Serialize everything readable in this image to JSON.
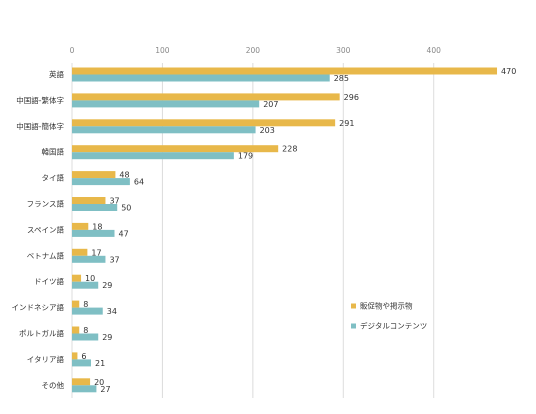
{
  "chart_data": {
    "type": "bar",
    "orientation": "horizontal",
    "categories": [
      "英語",
      "中国語-繁体字",
      "中国語-簡体字",
      "韓国語",
      "タイ語",
      "フランス語",
      "スペイン語",
      "ベトナム語",
      "ドイツ語",
      "インドネシア語",
      "ポルトガル語",
      "イタリア語",
      "その他"
    ],
    "series": [
      {
        "name": "販促物や掲示物",
        "color": "#E8B84A",
        "values": [
          470,
          296,
          291,
          228,
          48,
          37,
          18,
          17,
          10,
          8,
          8,
          6,
          20
        ]
      },
      {
        "name": "デジタルコンテンツ",
        "color": "#7FBFC4",
        "values": [
          285,
          207,
          203,
          179,
          64,
          50,
          47,
          37,
          29,
          34,
          29,
          21,
          27
        ]
      }
    ],
    "xticks": [
      0,
      100,
      200,
      300,
      400
    ],
    "xlim": [
      0,
      470
    ],
    "grid": true,
    "legend_position": "bottom-right",
    "title": "",
    "xlabel": "",
    "ylabel": ""
  }
}
